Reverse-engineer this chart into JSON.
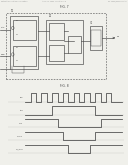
{
  "header_left": "Patent Application Publication",
  "header_mid": "Aug. 13, 2009  Sheet 4 of 8",
  "header_right": "US 2009/0201082 A1",
  "fig1_label": "FIG. 7",
  "fig2_label": "FIG. 8",
  "bg_color": "#f0f0eb",
  "line_color": "#444444",
  "timing_clk": [
    0,
    1,
    0,
    1,
    0,
    1,
    0,
    1,
    0,
    1,
    0,
    1,
    0,
    1,
    0,
    1,
    0,
    0
  ],
  "timing_cas": [
    0,
    0,
    0,
    0,
    0,
    1,
    1,
    1,
    1,
    1,
    1,
    1,
    1,
    0,
    0,
    0,
    0,
    0
  ],
  "timing_oeb": [
    1,
    1,
    1,
    1,
    1,
    1,
    0,
    0,
    0,
    0,
    0,
    0,
    0,
    0,
    1,
    1,
    1,
    1
  ],
  "timing_oesig": [
    1,
    1,
    1,
    1,
    1,
    1,
    1,
    0,
    0,
    0,
    0,
    0,
    0,
    1,
    1,
    1,
    1,
    1
  ],
  "timing_oeout": [
    1,
    1,
    1,
    1,
    1,
    1,
    1,
    1,
    0,
    0,
    0,
    0,
    1,
    1,
    1,
    1,
    1,
    1
  ]
}
